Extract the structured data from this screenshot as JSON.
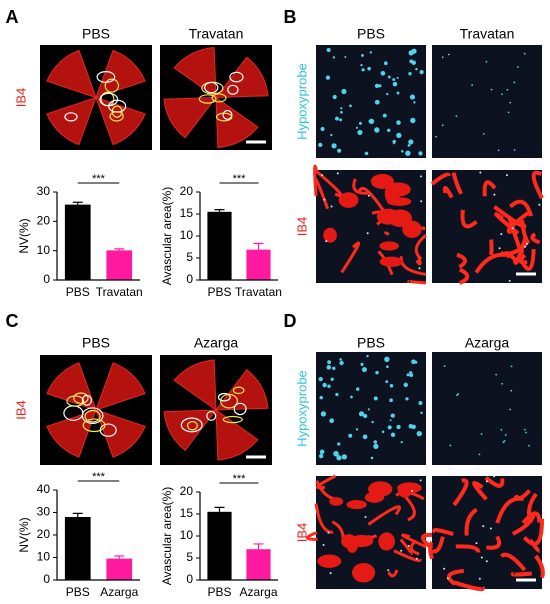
{
  "panels": [
    {
      "label": "A",
      "image_titles": [
        "PBS",
        "Travatan"
      ],
      "row_labels": [
        "IB4"
      ]
    },
    {
      "label": "B",
      "image_titles": [
        "PBS",
        "Travatan"
      ],
      "row_labels": [
        "Hypoxyprobe",
        "IB4"
      ]
    },
    {
      "label": "C",
      "image_titles": [
        "PBS",
        "Azarga"
      ],
      "row_labels": [
        "IB4"
      ]
    },
    {
      "label": "D",
      "image_titles": [
        "PBS",
        "Azarga"
      ],
      "row_labels": [
        "Hypoxyprobe",
        "IB4"
      ]
    }
  ],
  "chart_data": [
    {
      "type": "bar",
      "ylabel": "NV(%)",
      "categories": [
        "PBS",
        "Travatan"
      ],
      "values": [
        25.7,
        10.1
      ],
      "errors": [
        0.8,
        0.5
      ],
      "colors": [
        "#000000",
        "#ff1aa0"
      ],
      "ylim": [
        0,
        30
      ],
      "yticks": [
        0,
        10,
        20,
        30
      ],
      "annotation": "***"
    },
    {
      "type": "bar",
      "ylabel": "Avascular area(%)",
      "categories": [
        "PBS",
        "Travatan"
      ],
      "values": [
        15.5,
        6.9
      ],
      "errors": [
        0.5,
        1.4
      ],
      "colors": [
        "#000000",
        "#ff1aa0"
      ],
      "ylim": [
        0,
        20
      ],
      "yticks": [
        0,
        5,
        10,
        15,
        20
      ],
      "annotation": "***"
    },
    {
      "type": "bar",
      "ylabel": "NV(%)",
      "categories": [
        "PBS",
        "Azarga"
      ],
      "values": [
        28,
        9.5
      ],
      "errors": [
        1.6,
        1.2
      ],
      "colors": [
        "#000000",
        "#ff1aa0"
      ],
      "ylim": [
        0,
        40
      ],
      "yticks": [
        0,
        10,
        20,
        30,
        40
      ],
      "annotation": "***"
    },
    {
      "type": "bar",
      "ylabel": "Avascular area(%)",
      "categories": [
        "PBS",
        "Azarga"
      ],
      "values": [
        15.5,
        7
      ],
      "errors": [
        1,
        1.2
      ],
      "colors": [
        "#000000",
        "#ff1aa0"
      ],
      "ylim": [
        0,
        20
      ],
      "yticks": [
        0,
        5,
        10,
        15,
        20
      ],
      "annotation": "***"
    }
  ]
}
